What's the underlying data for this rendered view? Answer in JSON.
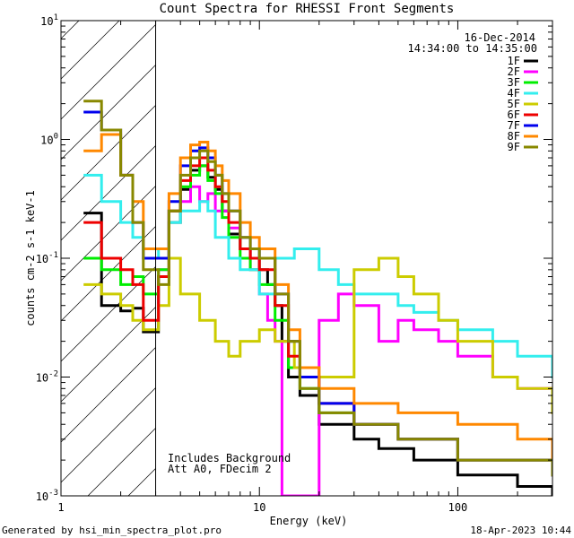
{
  "chart_data": {
    "type": "line",
    "title": "Count Spectra for RHESSI Front Segments",
    "xlabel": "Energy (keV)",
    "ylabel": "counts cm-2 s-1 keV-1",
    "xscale": "log",
    "yscale": "log",
    "xlim": [
      1,
      300
    ],
    "ylim": [
      0.001,
      10
    ],
    "x_tick_labels": [
      "1",
      "10",
      "100"
    ],
    "y_tick_labels": [
      "10",
      "10",
      "10",
      "10",
      "10"
    ],
    "y_tick_exponents": [
      "1",
      "0",
      "-1",
      "-2",
      "-3"
    ],
    "date": "16-Dec-2014",
    "time_range": "14:34:00 to 14:35:00",
    "annotation_lines": [
      "Includes Background",
      "Att A0, FDecim 2"
    ],
    "hatched_region_max_keV": 3,
    "footer_left": "Generated by hsi_min_spectra_plot.pro",
    "footer_right": "18-Apr-2023 10:44",
    "series": [
      {
        "name": "1F",
        "color": "#000000",
        "points": [
          [
            1.3,
            0.24
          ],
          [
            1.6,
            0.04
          ],
          [
            2,
            0.036
          ],
          [
            2.3,
            0.038
          ],
          [
            2.6,
            0.024
          ],
          [
            3.1,
            0.07
          ],
          [
            3.5,
            0.2
          ],
          [
            4,
            0.38
          ],
          [
            4.5,
            0.55
          ],
          [
            5,
            0.6
          ],
          [
            5.5,
            0.48
          ],
          [
            6,
            0.38
          ],
          [
            6.5,
            0.25
          ],
          [
            7,
            0.16
          ],
          [
            8,
            0.12
          ],
          [
            9,
            0.1
          ],
          [
            10,
            0.08
          ],
          [
            11,
            0.06
          ],
          [
            12,
            0.04
          ],
          [
            13,
            0.02
          ],
          [
            14,
            0.01
          ],
          [
            16,
            0.007
          ],
          [
            20,
            0.004
          ],
          [
            30,
            0.003
          ],
          [
            40,
            0.0025
          ],
          [
            60,
            0.002
          ],
          [
            100,
            0.0015
          ],
          [
            200,
            0.0012
          ],
          [
            300,
            0.001
          ]
        ]
      },
      {
        "name": "2F",
        "color": "#ff00ff",
        "points": [
          [
            3.1,
            0.08
          ],
          [
            3.5,
            0.25
          ],
          [
            4,
            0.3
          ],
          [
            4.5,
            0.4
          ],
          [
            5,
            0.3
          ],
          [
            5.5,
            0.35
          ],
          [
            6,
            0.25
          ],
          [
            6.5,
            0.25
          ],
          [
            7,
            0.18
          ],
          [
            8,
            0.12
          ],
          [
            9,
            0.08
          ],
          [
            10,
            0.05
          ],
          [
            11,
            0.03
          ],
          [
            12,
            0.02
          ],
          [
            13,
            0.001
          ],
          [
            16,
            0.001
          ],
          [
            20,
            0.03
          ],
          [
            25,
            0.05
          ],
          [
            30,
            0.04
          ],
          [
            40,
            0.02
          ],
          [
            50,
            0.03
          ],
          [
            60,
            0.025
          ],
          [
            80,
            0.02
          ],
          [
            100,
            0.015
          ],
          [
            150,
            0.01
          ],
          [
            200,
            0.008
          ],
          [
            300,
            0.005
          ]
        ]
      },
      {
        "name": "3F",
        "color": "#00ee00",
        "points": [
          [
            1.3,
            0.1
          ],
          [
            1.6,
            0.08
          ],
          [
            2,
            0.06
          ],
          [
            2.3,
            0.07
          ],
          [
            2.6,
            0.05
          ],
          [
            3.1,
            0.08
          ],
          [
            3.5,
            0.25
          ],
          [
            4,
            0.4
          ],
          [
            4.5,
            0.5
          ],
          [
            5,
            0.6
          ],
          [
            5.5,
            0.45
          ],
          [
            6,
            0.35
          ],
          [
            6.5,
            0.22
          ],
          [
            7,
            0.15
          ],
          [
            8,
            0.1
          ],
          [
            9,
            0.08
          ],
          [
            10,
            0.06
          ],
          [
            12,
            0.03
          ],
          [
            14,
            0.012
          ],
          [
            16,
            0.008
          ],
          [
            20,
            0.005
          ],
          [
            30,
            0.004
          ],
          [
            50,
            0.003
          ],
          [
            100,
            0.002
          ],
          [
            300,
            0.0015
          ]
        ]
      },
      {
        "name": "4F",
        "color": "#33eeee",
        "points": [
          [
            1.3,
            0.5
          ],
          [
            1.6,
            0.3
          ],
          [
            2,
            0.2
          ],
          [
            2.3,
            0.15
          ],
          [
            2.6,
            0.12
          ],
          [
            3.1,
            0.1
          ],
          [
            3.5,
            0.2
          ],
          [
            4,
            0.25
          ],
          [
            4.5,
            0.25
          ],
          [
            5,
            0.3
          ],
          [
            5.5,
            0.25
          ],
          [
            6,
            0.15
          ],
          [
            7,
            0.1
          ],
          [
            8,
            0.08
          ],
          [
            10,
            0.05
          ],
          [
            12,
            0.1
          ],
          [
            15,
            0.12
          ],
          [
            20,
            0.08
          ],
          [
            25,
            0.06
          ],
          [
            30,
            0.05
          ],
          [
            40,
            0.05
          ],
          [
            50,
            0.04
          ],
          [
            60,
            0.035
          ],
          [
            80,
            0.03
          ],
          [
            100,
            0.025
          ],
          [
            150,
            0.02
          ],
          [
            200,
            0.015
          ],
          [
            300,
            0.01
          ]
        ]
      },
      {
        "name": "5F",
        "color": "#cccc00",
        "points": [
          [
            1.3,
            0.06
          ],
          [
            1.6,
            0.05
          ],
          [
            2,
            0.04
          ],
          [
            2.3,
            0.03
          ],
          [
            2.6,
            0.025
          ],
          [
            3.1,
            0.04
          ],
          [
            3.5,
            0.1
          ],
          [
            4,
            0.05
          ],
          [
            5,
            0.03
          ],
          [
            6,
            0.02
          ],
          [
            7,
            0.015
          ],
          [
            8,
            0.02
          ],
          [
            10,
            0.025
          ],
          [
            12,
            0.02
          ],
          [
            15,
            0.012
          ],
          [
            20,
            0.01
          ],
          [
            30,
            0.08
          ],
          [
            40,
            0.1
          ],
          [
            50,
            0.07
          ],
          [
            60,
            0.05
          ],
          [
            80,
            0.03
          ],
          [
            100,
            0.02
          ],
          [
            150,
            0.01
          ],
          [
            200,
            0.008
          ],
          [
            300,
            0.005
          ]
        ]
      },
      {
        "name": "6F",
        "color": "#ee0000",
        "points": [
          [
            1.3,
            0.2
          ],
          [
            1.6,
            0.1
          ],
          [
            2,
            0.08
          ],
          [
            2.3,
            0.06
          ],
          [
            2.6,
            0.03
          ],
          [
            3.1,
            0.07
          ],
          [
            3.5,
            0.25
          ],
          [
            4,
            0.45
          ],
          [
            4.5,
            0.6
          ],
          [
            5,
            0.7
          ],
          [
            5.5,
            0.55
          ],
          [
            6,
            0.4
          ],
          [
            6.5,
            0.3
          ],
          [
            7,
            0.2
          ],
          [
            8,
            0.12
          ],
          [
            9,
            0.1
          ],
          [
            10,
            0.08
          ],
          [
            12,
            0.04
          ],
          [
            14,
            0.015
          ],
          [
            16,
            0.01
          ],
          [
            20,
            0.006
          ],
          [
            30,
            0.004
          ],
          [
            50,
            0.003
          ],
          [
            100,
            0.002
          ],
          [
            300,
            0.0015
          ]
        ]
      },
      {
        "name": "7F",
        "color": "#0000ee",
        "points": [
          [
            1.3,
            1.7
          ],
          [
            1.6,
            1.2
          ],
          [
            2,
            0.5
          ],
          [
            2.3,
            0.2
          ],
          [
            2.6,
            0.1
          ],
          [
            3.1,
            0.1
          ],
          [
            3.5,
            0.3
          ],
          [
            4,
            0.6
          ],
          [
            4.5,
            0.8
          ],
          [
            5,
            0.85
          ],
          [
            5.5,
            0.7
          ],
          [
            6,
            0.5
          ],
          [
            6.5,
            0.35
          ],
          [
            7,
            0.25
          ],
          [
            8,
            0.15
          ],
          [
            9,
            0.12
          ],
          [
            10,
            0.1
          ],
          [
            12,
            0.05
          ],
          [
            14,
            0.02
          ],
          [
            16,
            0.01
          ],
          [
            20,
            0.006
          ],
          [
            30,
            0.004
          ],
          [
            50,
            0.003
          ],
          [
            100,
            0.002
          ],
          [
            300,
            0.0015
          ]
        ]
      },
      {
        "name": "8F",
        "color": "#ff8800",
        "points": [
          [
            1.3,
            0.8
          ],
          [
            1.6,
            1.1
          ],
          [
            2,
            0.5
          ],
          [
            2.3,
            0.3
          ],
          [
            2.6,
            0.12
          ],
          [
            3.1,
            0.12
          ],
          [
            3.5,
            0.35
          ],
          [
            4,
            0.7
          ],
          [
            4.5,
            0.9
          ],
          [
            5,
            0.95
          ],
          [
            5.5,
            0.8
          ],
          [
            6,
            0.6
          ],
          [
            6.5,
            0.45
          ],
          [
            7,
            0.35
          ],
          [
            8,
            0.2
          ],
          [
            9,
            0.15
          ],
          [
            10,
            0.12
          ],
          [
            12,
            0.06
          ],
          [
            14,
            0.025
          ],
          [
            16,
            0.012
          ],
          [
            20,
            0.008
          ],
          [
            30,
            0.006
          ],
          [
            50,
            0.005
          ],
          [
            100,
            0.004
          ],
          [
            200,
            0.003
          ],
          [
            300,
            0.002
          ]
        ]
      },
      {
        "name": "9F",
        "color": "#888800",
        "points": [
          [
            1.3,
            2.1
          ],
          [
            1.6,
            1.2
          ],
          [
            2,
            0.5
          ],
          [
            2.3,
            0.2
          ],
          [
            2.6,
            0.08
          ],
          [
            3.1,
            0.06
          ],
          [
            3.5,
            0.25
          ],
          [
            4,
            0.5
          ],
          [
            4.5,
            0.7
          ],
          [
            5,
            0.8
          ],
          [
            5.5,
            0.65
          ],
          [
            6,
            0.5
          ],
          [
            6.5,
            0.35
          ],
          [
            7,
            0.25
          ],
          [
            8,
            0.15
          ],
          [
            9,
            0.12
          ],
          [
            10,
            0.1
          ],
          [
            12,
            0.05
          ],
          [
            14,
            0.02
          ],
          [
            16,
            0.008
          ],
          [
            20,
            0.005
          ],
          [
            30,
            0.004
          ],
          [
            50,
            0.003
          ],
          [
            100,
            0.002
          ],
          [
            300,
            0.0015
          ]
        ]
      }
    ]
  }
}
